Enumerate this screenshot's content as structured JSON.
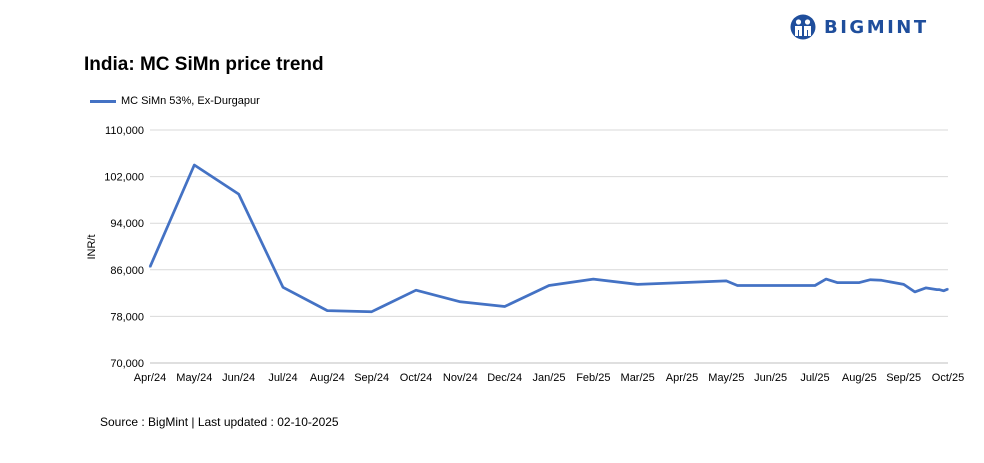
{
  "brand": {
    "name": "BIGMINT",
    "color": "#1f4e9c",
    "icon": "bigmint-logo-icon"
  },
  "footer": {
    "source": "Source : BigMint | Last updated : 02-10-2025"
  },
  "chart_data": {
    "type": "line",
    "title": "India: MC SiMn price trend",
    "ylabel": "INR/t",
    "xlabel": "",
    "ylim": [
      70000,
      110000
    ],
    "yticks": [
      70000,
      78000,
      86000,
      94000,
      102000,
      110000
    ],
    "ytick_labels": [
      "70,000",
      "78,000",
      "86,000",
      "94,000",
      "102,000",
      "110,000"
    ],
    "x_labels": [
      "Apr/24",
      "May/24",
      "Jun/24",
      "Jul/24",
      "Aug/24",
      "Sep/24",
      "Oct/24",
      "Nov/24",
      "Dec/24",
      "Jan/25",
      "Feb/25",
      "Mar/25",
      "Apr/25",
      "May/25",
      "Jun/25",
      "Jul/25",
      "Aug/25",
      "Sep/25",
      "Oct/25"
    ],
    "grid": true,
    "legend_position": "top-left",
    "series": [
      {
        "name": "MC SiMn 53%, Ex-Durgapur",
        "color": "#4472c4",
        "points": [
          [
            "Apr/24",
            86500
          ],
          [
            "May/24",
            104000
          ],
          [
            "Jun/24",
            99000
          ],
          [
            "Jul/24",
            83000
          ],
          [
            "Aug/24",
            79000
          ],
          [
            "Sep/24",
            78800
          ],
          [
            "Oct/24",
            82500
          ],
          [
            "Nov/24",
            80500
          ],
          [
            "Dec/24",
            79700
          ],
          [
            "Jan/25",
            83300
          ],
          [
            "Feb/25",
            84400
          ],
          [
            "Mar/25",
            83500
          ],
          [
            "Apr/25",
            83800
          ],
          [
            "May/25",
            84100
          ],
          [
            "May/25+",
            83300
          ],
          [
            "Jun/25",
            83300
          ],
          [
            "Jul/25",
            83300
          ],
          [
            "Jul/25+",
            84400
          ],
          [
            "Jul/25++",
            83800
          ],
          [
            "Aug/25",
            83800
          ],
          [
            "Aug/25+",
            84300
          ],
          [
            "Aug/25++",
            84200
          ],
          [
            "Sep/25",
            83500
          ],
          [
            "Sep/25+",
            82200
          ],
          [
            "Sep/25++",
            82900
          ],
          [
            "Sep/25+++",
            82600
          ],
          [
            "Oct/25-",
            82600
          ],
          [
            "Oct/25-+",
            82400
          ],
          [
            "Oct/25",
            82700
          ]
        ]
      }
    ]
  }
}
